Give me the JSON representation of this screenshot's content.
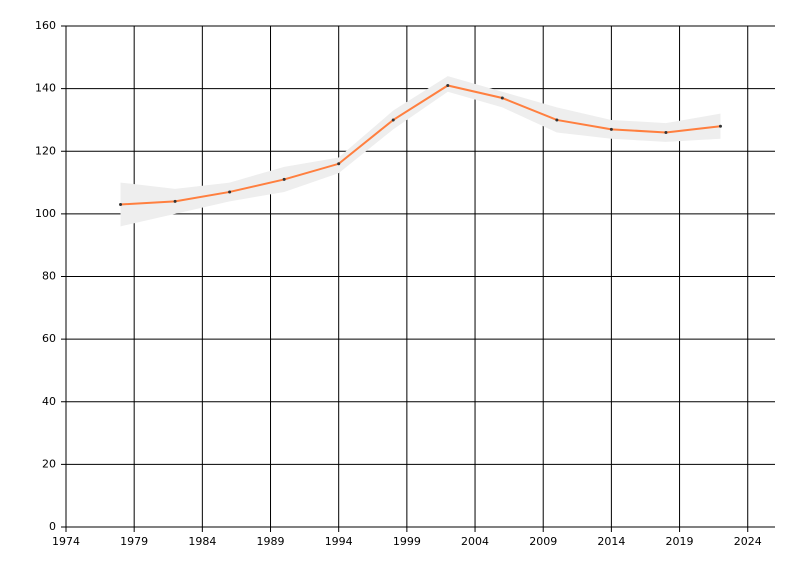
{
  "chart_data": {
    "type": "line",
    "x": [
      1978,
      1982,
      1986,
      1990,
      1994,
      1998,
      2002,
      2006,
      2010,
      2014,
      2018,
      2022
    ],
    "series": [
      {
        "color": "#ff7f3f",
        "values": [
          103,
          104,
          107,
          111,
          116,
          130,
          141,
          137,
          130,
          127,
          126,
          128
        ],
        "band_color": "#eeeeee",
        "upper": [
          110,
          108,
          110,
          115,
          118,
          133,
          144,
          139,
          134,
          130,
          129,
          132
        ],
        "lower": [
          96,
          100,
          104,
          107,
          113,
          127,
          139,
          134,
          126,
          124,
          123,
          124
        ]
      }
    ],
    "xlim": [
      1974,
      2026
    ],
    "xticks": [
      1974,
      1979,
      1984,
      1989,
      1994,
      1999,
      2004,
      2009,
      2014,
      2019,
      2024
    ],
    "ylim": [
      0,
      160
    ],
    "yticks": [
      0,
      20,
      40,
      60,
      80,
      100,
      120,
      140,
      160
    ],
    "grid": true
  }
}
